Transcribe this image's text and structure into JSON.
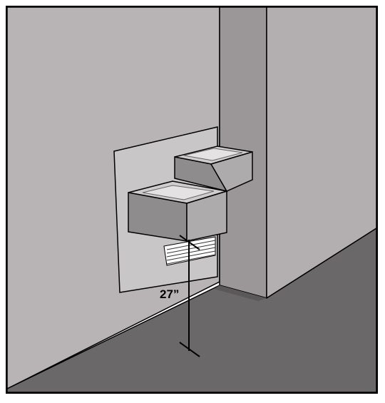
{
  "dimension": {
    "label": "27”",
    "description_value_inches": 27
  },
  "colors": {
    "wall_left": "#b8b4b6",
    "wall_column_front": "#9b9799",
    "wall_right": "#b3afb1",
    "floor": "#6a6869",
    "mounting_plate": "#c9c6c8",
    "fountain_top": "#cfcccd",
    "fountain_front": "#8f8c8e",
    "fountain_side": "#aeabad",
    "outline": "#000000"
  }
}
